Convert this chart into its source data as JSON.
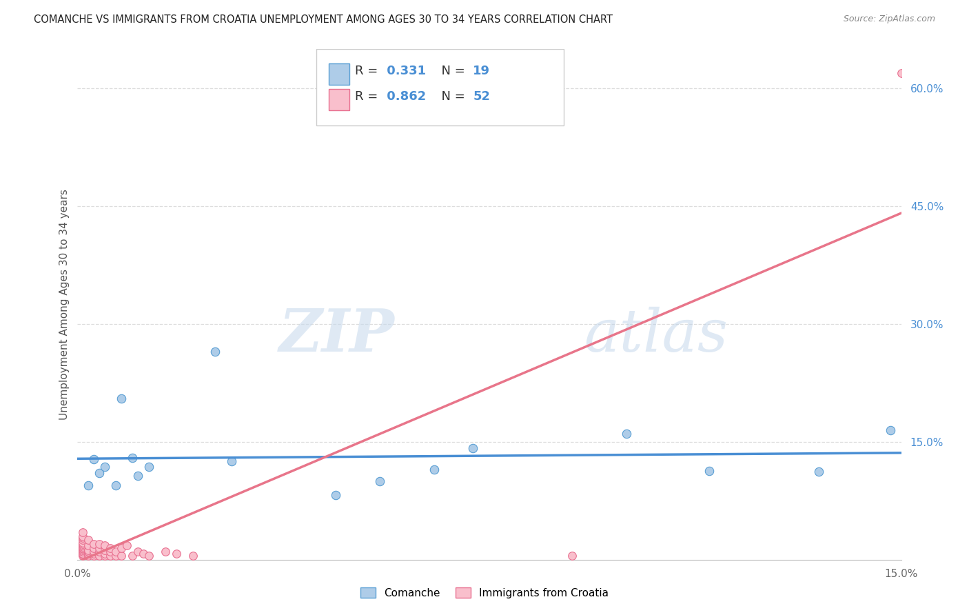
{
  "title": "COMANCHE VS IMMIGRANTS FROM CROATIA UNEMPLOYMENT AMONG AGES 30 TO 34 YEARS CORRELATION CHART",
  "source": "Source: ZipAtlas.com",
  "ylabel": "Unemployment Among Ages 30 to 34 years",
  "xlim": [
    0,
    0.15
  ],
  "ylim": [
    0,
    0.65
  ],
  "xticks": [
    0.0,
    0.03,
    0.06,
    0.09,
    0.12,
    0.15
  ],
  "xticklabels": [
    "0.0%",
    "",
    "",
    "",
    "",
    "15.0%"
  ],
  "yticks_right": [
    0.15,
    0.3,
    0.45,
    0.6
  ],
  "yticklabels_right": [
    "15.0%",
    "30.0%",
    "45.0%",
    "60.0%"
  ],
  "watermark_zip": "ZIP",
  "watermark_atlas": "atlas",
  "comanche_fill": "#aecce8",
  "croatia_fill": "#f9bfcc",
  "comanche_edge": "#5a9fd4",
  "croatia_edge": "#e87090",
  "comanche_line_color": "#4a8fd4",
  "croatia_line_color": "#e8758a",
  "right_axis_color": "#4a8fd4",
  "legend_r_comanche": "0.331",
  "legend_n_comanche": "19",
  "legend_r_croatia": "0.862",
  "legend_n_croatia": "52",
  "comanche_x": [
    0.002,
    0.003,
    0.004,
    0.005,
    0.007,
    0.008,
    0.01,
    0.011,
    0.013,
    0.025,
    0.028,
    0.047,
    0.055,
    0.065,
    0.072,
    0.1,
    0.115,
    0.135,
    0.148
  ],
  "comanche_y": [
    0.095,
    0.128,
    0.11,
    0.118,
    0.095,
    0.205,
    0.13,
    0.107,
    0.118,
    0.265,
    0.125,
    0.082,
    0.1,
    0.115,
    0.142,
    0.16,
    0.113,
    0.112,
    0.165
  ],
  "croatia_x": [
    0.001,
    0.001,
    0.001,
    0.001,
    0.001,
    0.001,
    0.001,
    0.001,
    0.001,
    0.001,
    0.001,
    0.001,
    0.001,
    0.001,
    0.001,
    0.001,
    0.002,
    0.002,
    0.002,
    0.002,
    0.002,
    0.002,
    0.003,
    0.003,
    0.003,
    0.003,
    0.003,
    0.004,
    0.004,
    0.004,
    0.004,
    0.005,
    0.005,
    0.005,
    0.005,
    0.006,
    0.006,
    0.006,
    0.007,
    0.007,
    0.008,
    0.008,
    0.009,
    0.01,
    0.011,
    0.012,
    0.013,
    0.016,
    0.018,
    0.021,
    0.09,
    0.15
  ],
  "croatia_y": [
    0.005,
    0.007,
    0.008,
    0.01,
    0.01,
    0.012,
    0.014,
    0.015,
    0.016,
    0.018,
    0.02,
    0.022,
    0.025,
    0.028,
    0.03,
    0.035,
    0.005,
    0.008,
    0.01,
    0.012,
    0.018,
    0.025,
    0.005,
    0.008,
    0.01,
    0.015,
    0.02,
    0.005,
    0.01,
    0.015,
    0.02,
    0.005,
    0.008,
    0.012,
    0.018,
    0.005,
    0.01,
    0.015,
    0.005,
    0.01,
    0.005,
    0.015,
    0.018,
    0.005,
    0.01,
    0.008,
    0.005,
    0.01,
    0.008,
    0.005,
    0.005,
    0.62
  ]
}
